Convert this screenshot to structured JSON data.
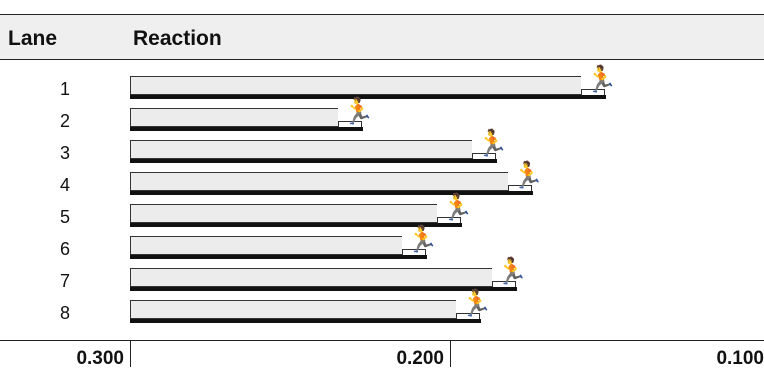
{
  "header": {
    "lane_label": "Lane",
    "reaction_label": "Reaction"
  },
  "chart_data": {
    "type": "bar",
    "orientation": "horizontal",
    "categories": [
      "1",
      "2",
      "3",
      "4",
      "5",
      "6",
      "7",
      "8"
    ],
    "values": [
      0.159,
      0.235,
      0.193,
      0.182,
      0.204,
      0.215,
      0.187,
      0.198
    ],
    "xlim": [
      0.3,
      0.1
    ],
    "x_ticks": [
      "0.300",
      "0.200",
      "0.100"
    ],
    "xlabel": "",
    "ylabel": "",
    "title": "",
    "icon": "runner-icon"
  }
}
